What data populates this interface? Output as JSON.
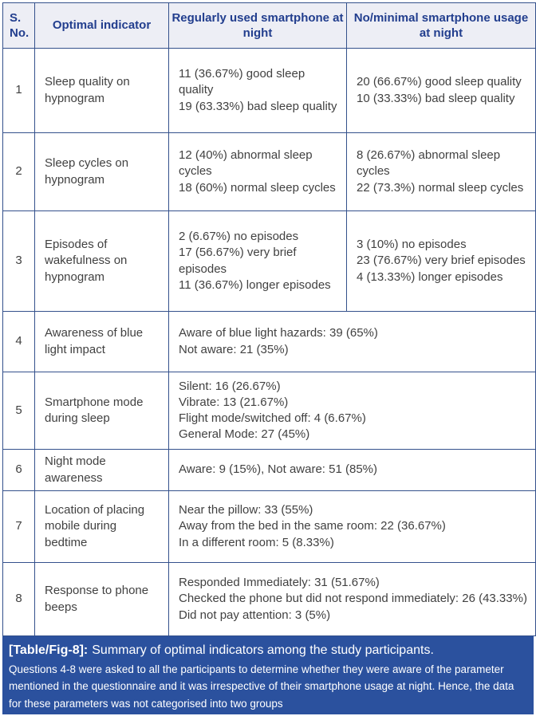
{
  "colors": {
    "border": "#34518c",
    "header-bg": "#edeef5",
    "header-text": "#223e8e",
    "body-text": "#414141",
    "caption-bg": "#2b519e",
    "caption-text": "#ffffff"
  },
  "table": {
    "headers": [
      "S. No.",
      "Optimal indicator",
      "Regularly used smartphone at night",
      "No/minimal smartphone usage at night"
    ],
    "rows": [
      {
        "no": "1",
        "indicator": "Sleep quality on hypnogram",
        "regular": [
          "11 (36.67%) good sleep quality",
          "19 (63.33%) bad sleep quality"
        ],
        "minimal": [
          "20 (66.67%) good sleep quality",
          "10 (33.33%) bad sleep quality"
        ]
      },
      {
        "no": "2",
        "indicator": "Sleep cycles on hypnogram",
        "regular": [
          "12 (40%) abnormal sleep cycles",
          "18 (60%) normal sleep cycles"
        ],
        "minimal": [
          "8 (26.67%) abnormal sleep cycles",
          "22 (73.3%) normal sleep cycles"
        ]
      },
      {
        "no": "3",
        "indicator": "Episodes of wakefulness on hypnogram",
        "regular": [
          "2 (6.67%) no episodes",
          "17 (56.67%) very brief episodes",
          "11 (36.67%) longer episodes"
        ],
        "minimal": [
          "3 (10%) no episodes",
          "23 (76.67%) very brief episodes",
          "4 (13.33%) longer episodes"
        ]
      },
      {
        "no": "4",
        "indicator": "Awareness of blue light impact",
        "combined": [
          "Aware of blue light hazards: 39 (65%)",
          "Not aware: 21 (35%)"
        ]
      },
      {
        "no": "5",
        "indicator": "Smartphone mode during sleep",
        "combined": [
          "Silent: 16 (26.67%)",
          "Vibrate: 13 (21.67%)",
          "Flight mode/switched off: 4 (6.67%)",
          "General Mode: 27 (45%)"
        ]
      },
      {
        "no": "6",
        "indicator": "Night mode awareness",
        "combined": [
          "Aware: 9 (15%), Not aware: 51 (85%)"
        ]
      },
      {
        "no": "7",
        "indicator": "Location of placing mobile during bedtime",
        "combined": [
          "Near the pillow: 33 (55%)",
          "Away from the bed in the same room: 22 (36.67%)",
          "In a different room: 5 (8.33%)"
        ]
      },
      {
        "no": "8",
        "indicator": "Response to phone beeps",
        "combined": [
          "Responded Immediately: 31 (51.67%)",
          "Checked the phone but did not respond immediately: 26 (43.33%)",
          "Did not pay attention: 3 (5%)"
        ]
      }
    ]
  },
  "caption": {
    "label": "[Table/Fig-8]:",
    "title": "Summary of optimal indicators among the study participants.",
    "note": "Questions 4-8 were asked to all the participants to determine whether they were aware of the parameter mentioned in the questionnaire and it was irrespective of their smartphone usage at night. Hence, the data for these parameters was not categorised into two groups"
  }
}
